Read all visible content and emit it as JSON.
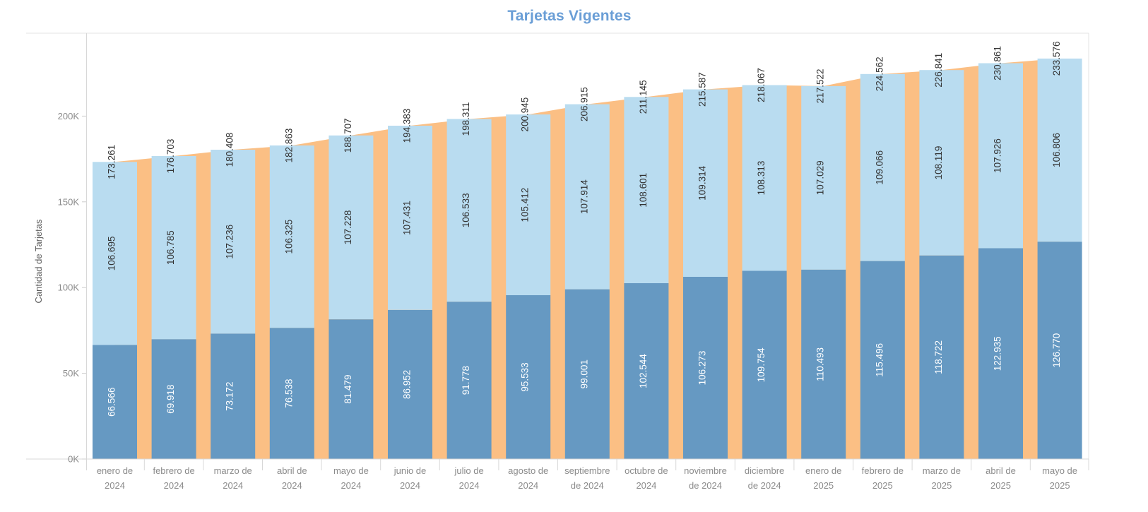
{
  "colors": {
    "background": "#ffffff",
    "title": "#6a9ed6",
    "bar_bottom": "#6699c2",
    "bar_top": "#b9dcf0",
    "area_total": "#fbbf84",
    "value_label_dark": "#333333",
    "value_label_light": "#ffffff",
    "axis_text": "#8b8b8b",
    "axis_title_text": "#5f5f5f",
    "plot_border": "#e3e3e3",
    "axis_line": "#d8d8d8",
    "tick_mark": "#cccccc"
  },
  "chart_data": {
    "type": "bar",
    "subtype": "stacked-bars-with-total-area-behind",
    "title": "Tarjetas Vigentes",
    "xlabel": "",
    "ylabel": "Cantidad de Tarjetas",
    "ylim": [
      0,
      248000
    ],
    "grid": false,
    "legend": {
      "visible": false
    },
    "y_ticks": [
      {
        "value": 0,
        "label": "0K"
      },
      {
        "value": 50000,
        "label": "50K"
      },
      {
        "value": 100000,
        "label": "100K"
      },
      {
        "value": 150000,
        "label": "150K"
      },
      {
        "value": 200000,
        "label": "200K"
      }
    ],
    "categories": [
      [
        "enero de",
        "2024"
      ],
      [
        "febrero de",
        "2024"
      ],
      [
        "marzo de",
        "2024"
      ],
      [
        "abril de",
        "2024"
      ],
      [
        "mayo de",
        "2024"
      ],
      [
        "junio de",
        "2024"
      ],
      [
        "julio de",
        "2024"
      ],
      [
        "agosto de",
        "2024"
      ],
      [
        "septiembre",
        "de 2024"
      ],
      [
        "octubre de",
        "2024"
      ],
      [
        "noviembre",
        "de 2024"
      ],
      [
        "diciembre",
        "de 2024"
      ],
      [
        "enero de",
        "2025"
      ],
      [
        "febrero de",
        "2025"
      ],
      [
        "marzo de",
        "2025"
      ],
      [
        "abril de",
        "2025"
      ],
      [
        "mayo de",
        "2025"
      ]
    ],
    "series": [
      {
        "id": "bottom-segment",
        "role": "stacked-bar-bottom",
        "color": "#6699c2",
        "label_color": "#ffffff",
        "values": [
          66566,
          69918,
          73172,
          76538,
          81479,
          86952,
          91778,
          95533,
          99001,
          102544,
          106273,
          109754,
          110493,
          115496,
          118722,
          122935,
          126770
        ],
        "labels": [
          "66.566",
          "69.918",
          "73.172",
          "76.538",
          "81.479",
          "86.952",
          "91.778",
          "95.533",
          "99.001",
          "102.544",
          "106.273",
          "109.754",
          "110.493",
          "115.496",
          "118.722",
          "122.935",
          "126.770"
        ]
      },
      {
        "id": "top-segment",
        "role": "stacked-bar-top",
        "color": "#b9dcf0",
        "label_color": "#333333",
        "values": [
          106695,
          106785,
          107236,
          106325,
          107228,
          107431,
          106533,
          105412,
          107914,
          108601,
          109314,
          108313,
          107029,
          109066,
          108119,
          107926,
          106806
        ],
        "labels": [
          "106.695",
          "106.785",
          "107.236",
          "106.325",
          "107.228",
          "107.431",
          "106.533",
          "105.412",
          "107.914",
          "108.601",
          "109.314",
          "108.313",
          "107.029",
          "109.066",
          "108.119",
          "107.926",
          "106.806"
        ]
      },
      {
        "id": "total",
        "role": "area-behind-bars-and-total-label",
        "color": "#fbbf84",
        "label_color": "#333333",
        "values": [
          173261,
          176703,
          180408,
          182863,
          188707,
          194383,
          198311,
          200945,
          206915,
          211145,
          215587,
          218067,
          217522,
          224562,
          226841,
          230861,
          233576
        ],
        "labels": [
          "173.261",
          "176.703",
          "180.408",
          "182.863",
          "188.707",
          "194.383",
          "198.311",
          "200.945",
          "206.915",
          "211.145",
          "215.587",
          "218.067",
          "217.522",
          "224.562",
          "226.841",
          "230.861",
          "233.576"
        ]
      }
    ]
  }
}
